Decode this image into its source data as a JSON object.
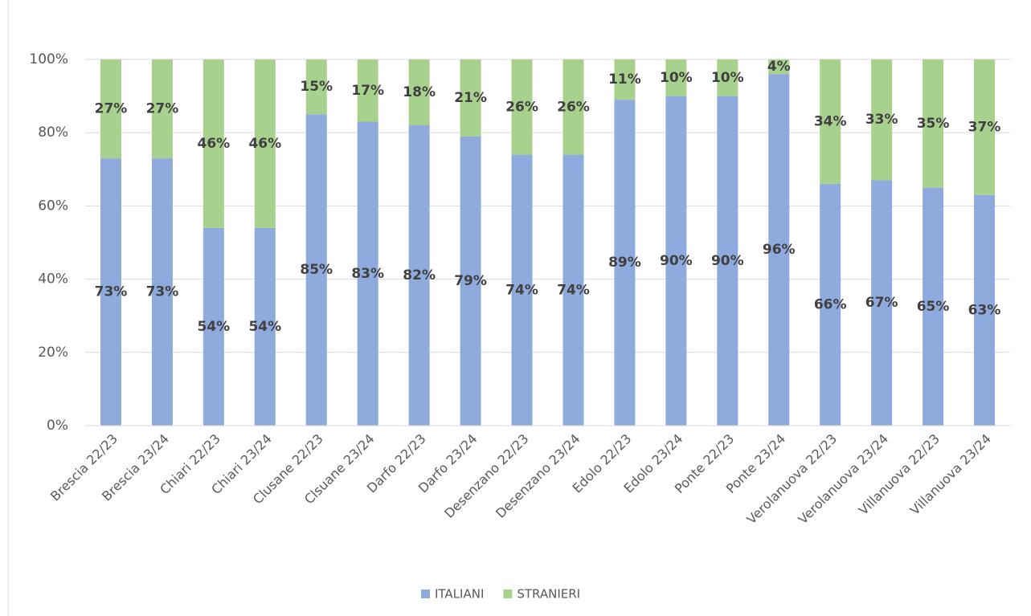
{
  "chart_data": {
    "type": "stacked_bar",
    "categories": [
      "Brescia 22/23",
      "Brescia 23/24",
      "Chiari 22/23",
      "Chiari 23/24",
      "Clusane 22/23",
      "Clsuane 23/24",
      "Darfo 22/23",
      "Darfo 23/24",
      "Desenzano 22/23",
      "Desenzano 23/24",
      "Edolo 22/23",
      "Edolo 23/24",
      "Ponte 22/23",
      "Ponte 23/24",
      "Verolanuova 22/23",
      "Verolanuova 23/24",
      "Villanuova 22/23",
      "Villanuova 23/24"
    ],
    "series": [
      {
        "name": "ITALIANI",
        "color": "#8faadc",
        "values": [
          73,
          73,
          54,
          54,
          85,
          83,
          82,
          79,
          74,
          74,
          89,
          90,
          90,
          96,
          66,
          67,
          65,
          63
        ],
        "value_labels": [
          "73%",
          "73%",
          "54%",
          "54%",
          "85%",
          "83%",
          "82%",
          "79%",
          "74%",
          "74%",
          "89%",
          "90%",
          "90%",
          "96%",
          "66%",
          "67%",
          "65%",
          "63%"
        ]
      },
      {
        "name": "STRANIERI",
        "color": "#a9d18e",
        "values": [
          27,
          27,
          46,
          46,
          15,
          17,
          18,
          21,
          26,
          26,
          11,
          10,
          10,
          4,
          34,
          33,
          35,
          37
        ],
        "value_labels": [
          "27%",
          "27%",
          "46%",
          "46%",
          "15%",
          "17%",
          "18%",
          "21%",
          "26%",
          "26%",
          "11%",
          "10%",
          "10%",
          "4%",
          "34%",
          "33%",
          "35%",
          "37%"
        ]
      }
    ],
    "ylim": [
      0,
      100
    ],
    "yticks": [
      {
        "value": 0,
        "label": "0%"
      },
      {
        "value": 20,
        "label": "20%"
      },
      {
        "value": 40,
        "label": "40%"
      },
      {
        "value": 60,
        "label": "60%"
      },
      {
        "value": 80,
        "label": "80%"
      },
      {
        "value": 100,
        "label": "100%"
      }
    ],
    "grid": true,
    "legend": "bottom"
  }
}
